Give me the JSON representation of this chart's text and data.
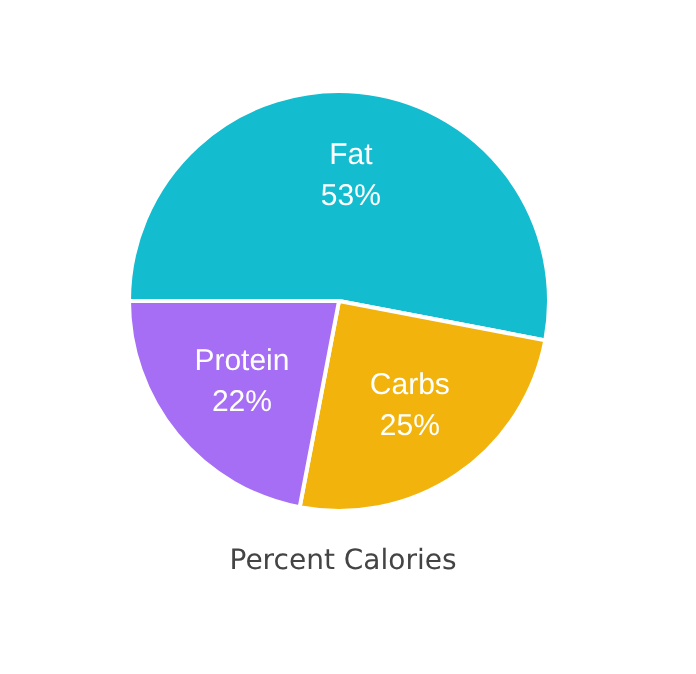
{
  "chart_data": {
    "type": "pie",
    "title": "Percent Calories",
    "categories": [
      "Fat",
      "Carbs",
      "Protein"
    ],
    "values": [
      53,
      25,
      22
    ],
    "value_labels": [
      "53%",
      "25%",
      "22%"
    ],
    "colors": [
      "#13bccf",
      "#f1b30c",
      "#a56ef5"
    ]
  }
}
